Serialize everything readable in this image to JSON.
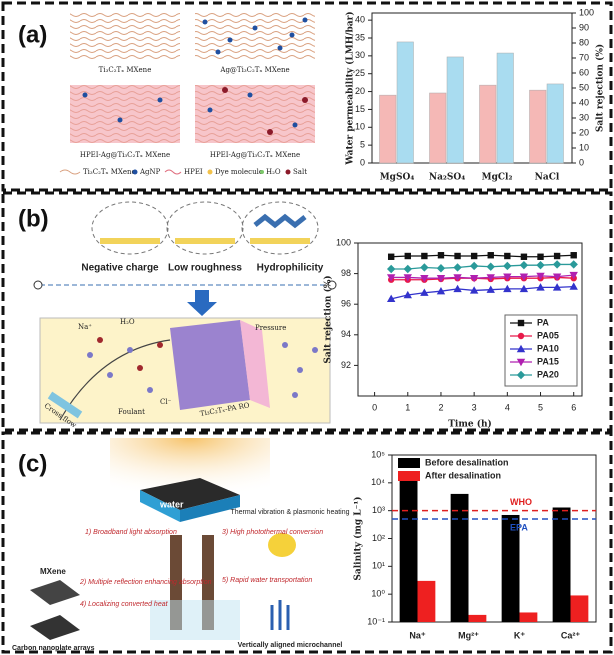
{
  "panel_labels": [
    "(a)",
    "(b)",
    "(c)"
  ],
  "schematics": {
    "a": {
      "blocks": [
        "Ti₃C₂Tₓ MXene",
        "Ag@Ti₃C₂Tₓ MXene",
        "HPEI-Ag@Ti₃C₂Tₓ MXene",
        "HPEI-Ag@Ti₃C₂Tₓ MXene"
      ],
      "legend": [
        "Ti₃C₂Tₓ MXene",
        "AgNP",
        "HPEI",
        "Dye molecule",
        "H₂O",
        "Salt"
      ]
    },
    "b": {
      "properties": [
        "Negative charge",
        "Low roughness",
        "Hydrophilicity"
      ],
      "na": "Na⁺",
      "h2o": "H₂O",
      "pressure": "Pressure",
      "cross_flow": "Cross flow",
      "foulant": "Foulant",
      "cl": "Cl⁻",
      "membrane": "Ti₃C₂Tₓ-PA RO"
    },
    "c": {
      "water": "water",
      "mxene": "MXene",
      "carbon": "Carbon nanoplate arrays",
      "steps": [
        "1) Broadband light absorption",
        "2) Multiple reflection enhancing absorption",
        "4) Localizing converted heat",
        "3) High photothermal conversion",
        "5) Rapid water transportation"
      ],
      "heating": "Thermal vibration & plasmonic heating",
      "channel": "Vertically aligned microchannel"
    }
  },
  "chart_data": [
    {
      "type": "bar",
      "categories": [
        "MgSO₄",
        "Na₂SO₄",
        "MgCl₂",
        "NaCl"
      ],
      "series": [
        {
          "color": "#f5b8b6",
          "values": [
            19.0,
            19.6,
            21.8,
            20.4
          ]
        },
        {
          "color": "#a9dcf0",
          "axis": "y2",
          "values": [
            80.7,
            70.7,
            73.3,
            52.7
          ]
        }
      ],
      "ylabel": "Water permeability (LMH/bar)",
      "y2label": "Salt rejection (%)",
      "ylim": [
        0,
        42
      ],
      "yticks": [
        0,
        5,
        10,
        15,
        20,
        25,
        30,
        35,
        40
      ],
      "y2lim": [
        0,
        100
      ],
      "y2ticks": [
        0,
        10,
        20,
        30,
        40,
        50,
        60,
        70,
        80,
        90,
        100
      ]
    },
    {
      "type": "line",
      "xlabel": "Time (h)",
      "ylabel": "Salt rejection (%)",
      "x": [
        0.5,
        1,
        1.5,
        2,
        2.5,
        3,
        3.5,
        4,
        4.5,
        5,
        5.5,
        6
      ],
      "xlim": [
        -0.5,
        6.25
      ],
      "xticks": [
        0,
        1,
        2,
        3,
        4,
        5,
        6
      ],
      "ylim": [
        90,
        100
      ],
      "yticks": [
        92,
        94,
        96,
        98,
        100
      ],
      "legend": "lower right",
      "series": [
        {
          "name": "PA",
          "color": "#111111",
          "marker": "square",
          "values": [
            99.1,
            99.15,
            99.15,
            99.2,
            99.15,
            99.15,
            99.2,
            99.15,
            99.1,
            99.1,
            99.15,
            99.2
          ]
        },
        {
          "name": "PA05",
          "color": "#e8194a",
          "marker": "circle",
          "values": [
            97.6,
            97.6,
            97.6,
            97.65,
            97.7,
            97.7,
            97.65,
            97.7,
            97.7,
            97.7,
            97.75,
            97.7
          ]
        },
        {
          "name": "PA10",
          "color": "#3333cc",
          "marker": "triangle-up",
          "values": [
            96.35,
            96.6,
            96.75,
            96.85,
            97.0,
            96.9,
            96.95,
            97.0,
            97.0,
            97.1,
            97.1,
            97.15
          ]
        },
        {
          "name": "PA15",
          "color": "#b020b0",
          "marker": "triangle-down",
          "values": [
            97.75,
            97.75,
            97.7,
            97.7,
            97.75,
            97.7,
            97.75,
            97.8,
            97.8,
            97.85,
            97.8,
            97.9
          ]
        },
        {
          "name": "PA20",
          "color": "#2a9a9a",
          "marker": "diamond",
          "values": [
            98.3,
            98.3,
            98.4,
            98.35,
            98.4,
            98.5,
            98.45,
            98.5,
            98.55,
            98.55,
            98.6,
            98.6
          ]
        }
      ]
    },
    {
      "type": "bar",
      "log_scale": true,
      "legend": "upper left",
      "ylabel": "Salinity (mg L⁻¹)",
      "categories": [
        "Na⁺",
        "Mg²⁺",
        "K⁺",
        "Ca²⁺"
      ],
      "series": [
        {
          "name": "Before desalination",
          "color": "#000000",
          "values": [
            20000,
            4000,
            700,
            1300
          ]
        },
        {
          "name": "After desalination",
          "color": "#ee2020",
          "values": [
            3,
            0.18,
            0.22,
            0.9
          ]
        }
      ],
      "ylim": [
        0.1,
        100000
      ],
      "yticks": [
        {
          "value": 0.1,
          "label": "10⁻¹"
        },
        {
          "value": 1,
          "label": "10⁰"
        },
        {
          "value": 10,
          "label": "10¹"
        },
        {
          "value": 100,
          "label": "10²"
        },
        {
          "value": 1000,
          "label": "10³"
        },
        {
          "value": 10000,
          "label": "10⁴"
        },
        {
          "value": 100000,
          "label": "10⁵"
        }
      ],
      "reference_lines": [
        {
          "label": "WHO",
          "value": 1000,
          "color": "#e02020"
        },
        {
          "label": "EPA",
          "value": 500,
          "color": "#2050c0"
        }
      ]
    }
  ]
}
